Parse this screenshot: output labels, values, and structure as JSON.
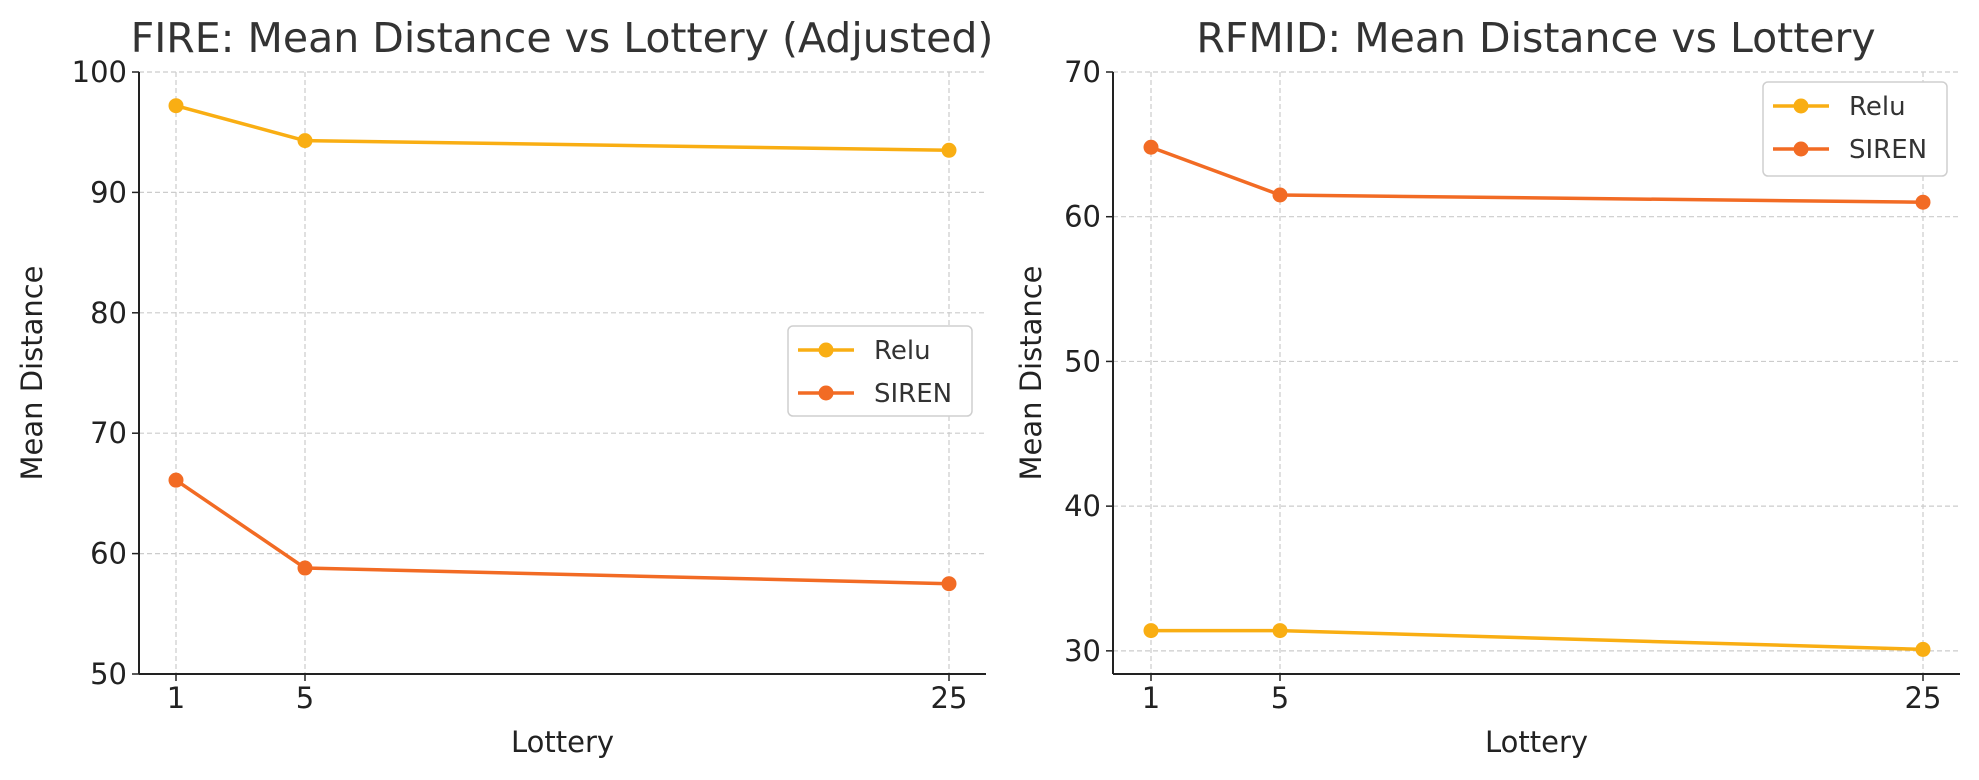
{
  "chart_data": [
    {
      "type": "line",
      "title": "FIRE: Mean Distance vs Lottery (Adjusted)",
      "xlabel": "Lottery",
      "ylabel": "Mean Distance",
      "x": [
        1,
        5,
        25
      ],
      "xticks": [
        "1",
        "5",
        "25"
      ],
      "ylim": [
        50,
        100
      ],
      "yticks": [
        50,
        60,
        70,
        80,
        90,
        100
      ],
      "grid": true,
      "legend_position": "center-right",
      "series": [
        {
          "name": "Relu",
          "color": "#F9AE13",
          "values": [
            97.2,
            94.3,
            93.5
          ]
        },
        {
          "name": "SIREN",
          "color": "#F26B24",
          "values": [
            66.1,
            58.8,
            57.5
          ]
        }
      ]
    },
    {
      "type": "line",
      "title": "RFMID: Mean Distance vs Lottery",
      "xlabel": "Lottery",
      "ylabel": "Mean Distance",
      "x": [
        1,
        5,
        25
      ],
      "xticks": [
        "1",
        "5",
        "25"
      ],
      "ylim": [
        28.4,
        70
      ],
      "yticks": [
        30,
        40,
        50,
        60,
        70
      ],
      "grid": true,
      "legend_position": "top-right",
      "series": [
        {
          "name": "Relu",
          "color": "#F9AE13",
          "values": [
            31.4,
            31.4,
            30.1
          ]
        },
        {
          "name": "SIREN",
          "color": "#F26B24",
          "values": [
            64.8,
            61.5,
            61.0
          ]
        }
      ]
    }
  ]
}
